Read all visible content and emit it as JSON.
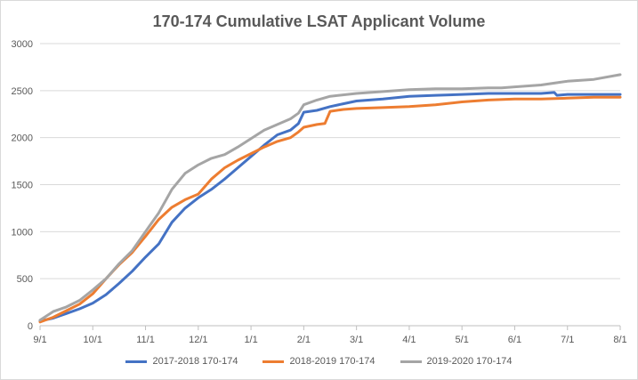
{
  "chart_data": {
    "type": "line",
    "title": "170-174 Cumulative LSAT Applicant Volume",
    "xlabel": "",
    "ylabel": "",
    "x_ticks": [
      "9/1",
      "10/1",
      "11/1",
      "12/1",
      "1/1",
      "2/1",
      "3/1",
      "4/1",
      "5/1",
      "6/1",
      "7/1",
      "8/1"
    ],
    "xlim": [
      0,
      11
    ],
    "ylim": [
      0,
      3000
    ],
    "y_ticks": [
      "0",
      "500",
      "1000",
      "1500",
      "2000",
      "2500",
      "3000"
    ],
    "y_tick_values": [
      0,
      500,
      1000,
      1500,
      2000,
      2500,
      3000
    ],
    "grid": true,
    "legend_position": "bottom",
    "series": [
      {
        "name": "2017-2018 170-174",
        "color": "#4472c4",
        "x": [
          0,
          0.25,
          0.5,
          0.75,
          1,
          1.25,
          1.5,
          1.75,
          2,
          2.25,
          2.5,
          2.75,
          3,
          3.25,
          3.5,
          3.75,
          4,
          4.25,
          4.5,
          4.75,
          4.9,
          5,
          5.25,
          5.5,
          5.75,
          6,
          6.5,
          7,
          7.5,
          8,
          8.5,
          9,
          9.5,
          9.75,
          9.8,
          10,
          10.5,
          11
        ],
        "y": [
          50,
          80,
          130,
          180,
          240,
          330,
          450,
          580,
          730,
          870,
          1100,
          1250,
          1360,
          1450,
          1560,
          1680,
          1800,
          1920,
          2030,
          2080,
          2150,
          2270,
          2290,
          2330,
          2360,
          2390,
          2410,
          2440,
          2450,
          2460,
          2470,
          2470,
          2470,
          2480,
          2450,
          2460,
          2460,
          2460
        ]
      },
      {
        "name": "2018-2019 170-174",
        "color": "#ed7d31",
        "x": [
          0,
          0.25,
          0.5,
          0.75,
          1,
          1.25,
          1.5,
          1.75,
          2,
          2.25,
          2.5,
          2.75,
          3,
          3.25,
          3.5,
          3.75,
          4,
          4.25,
          4.5,
          4.75,
          4.9,
          5,
          5.25,
          5.4,
          5.5,
          5.75,
          6,
          6.5,
          7,
          7.5,
          8,
          8.5,
          9,
          9.5,
          10,
          10.5,
          11
        ],
        "y": [
          40,
          90,
          160,
          230,
          340,
          500,
          650,
          780,
          950,
          1130,
          1260,
          1340,
          1400,
          1560,
          1680,
          1760,
          1830,
          1900,
          1960,
          2000,
          2060,
          2110,
          2140,
          2150,
          2280,
          2300,
          2310,
          2320,
          2330,
          2350,
          2380,
          2400,
          2410,
          2410,
          2420,
          2430,
          2430
        ]
      },
      {
        "name": "2019-2020 170-174",
        "color": "#a5a5a5",
        "x": [
          0,
          0.25,
          0.5,
          0.75,
          1,
          1.25,
          1.5,
          1.75,
          2,
          2.25,
          2.5,
          2.75,
          3,
          3.25,
          3.5,
          3.75,
          4,
          4.25,
          4.5,
          4.75,
          4.9,
          5,
          5.25,
          5.5,
          6,
          6.5,
          7,
          7.5,
          8,
          8.5,
          8.75,
          9,
          9.5,
          9.75,
          10,
          10.5,
          11
        ],
        "y": [
          60,
          150,
          200,
          270,
          380,
          500,
          660,
          800,
          1000,
          1200,
          1450,
          1620,
          1710,
          1780,
          1820,
          1900,
          1990,
          2080,
          2140,
          2200,
          2260,
          2350,
          2400,
          2440,
          2470,
          2490,
          2510,
          2520,
          2520,
          2530,
          2530,
          2540,
          2560,
          2580,
          2600,
          2620,
          2670
        ]
      }
    ]
  }
}
